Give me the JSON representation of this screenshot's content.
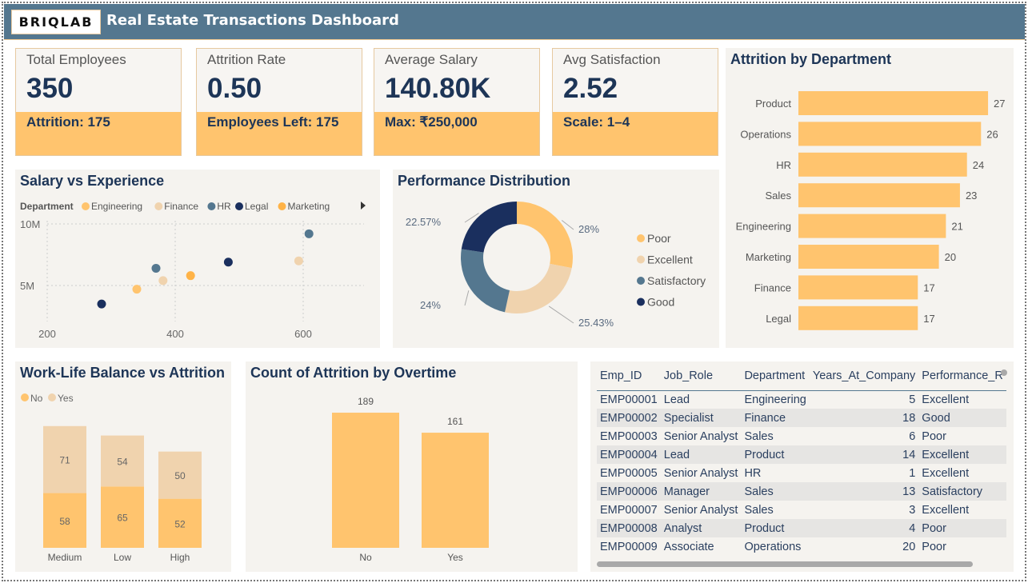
{
  "header": {
    "logo": "BRIQLAB",
    "title": "Real Estate Transactions Dashboard"
  },
  "kpis": [
    {
      "label": "Total Employees",
      "value": "350",
      "sub": "Attrition: 175"
    },
    {
      "label": "Attrition Rate",
      "value": "0.50",
      "sub": "Employees Left: 175"
    },
    {
      "label": "Average Salary",
      "value": "140.80K",
      "sub": "Max: ₹250,000"
    },
    {
      "label": "Avg Satisfaction",
      "value": "2.52",
      "sub": "Scale: 1–4"
    }
  ],
  "colors": {
    "header": "#54778f",
    "accent": "#ffc46e",
    "navy": "#1a2f5e",
    "steel": "#54778f",
    "beige": "#f0d3ae"
  },
  "chart_data": [
    {
      "type": "bar",
      "orientation": "horizontal",
      "title": "Attrition by Department",
      "categories": [
        "Product",
        "Operations",
        "HR",
        "Sales",
        "Engineering",
        "Marketing",
        "Finance",
        "Legal"
      ],
      "values": [
        27,
        26,
        24,
        23,
        21,
        20,
        17,
        17
      ]
    },
    {
      "type": "scatter",
      "title": "Salary vs Experience",
      "legend_title": "Department",
      "legend": [
        "Engineering",
        "Finance",
        "HR",
        "Legal",
        "Marketing"
      ],
      "legend_colors": [
        "#ffc46e",
        "#f0d3ae",
        "#54778f",
        "#1a2f5e",
        "#ffb347"
      ],
      "x_ticks": [
        "200",
        "400",
        "600"
      ],
      "y_ticks": [
        "10M",
        "5M"
      ],
      "xlim": [
        200,
        700
      ],
      "ylim": [
        2000000,
        10000000
      ],
      "grid": true,
      "points": [
        {
          "dept": "Legal",
          "x": 285,
          "y": 3500000
        },
        {
          "dept": "Engineering",
          "x": 340,
          "y": 4700000
        },
        {
          "dept": "HR",
          "x": 370,
          "y": 6400000
        },
        {
          "dept": "Finance",
          "x": 381,
          "y": 5400000
        },
        {
          "dept": "Marketing",
          "x": 424,
          "y": 5800000
        },
        {
          "dept": "Legal",
          "x": 483,
          "y": 6900000
        },
        {
          "dept": "Finance",
          "x": 593,
          "y": 7000000
        },
        {
          "dept": "HR",
          "x": 609,
          "y": 9200000
        }
      ]
    },
    {
      "type": "pie",
      "donut": true,
      "title": "Performance Distribution",
      "labels": [
        "Poor",
        "Excellent",
        "Satisfactory",
        "Good"
      ],
      "values": [
        28,
        25.43,
        24,
        22.57
      ],
      "data_labels": [
        "28%",
        "25.43%",
        "24%",
        "22.57%"
      ],
      "colors": [
        "#ffc46e",
        "#f0d3ae",
        "#54778f",
        "#1a2f5e"
      ],
      "legend": "right"
    },
    {
      "type": "bar",
      "stacked": true,
      "title": "Work-Life Balance vs Attrition",
      "categories": [
        "Medium",
        "Low",
        "High"
      ],
      "series": [
        {
          "name": "No",
          "values": [
            58,
            65,
            52
          ],
          "color": "#ffc46e"
        },
        {
          "name": "Yes",
          "values": [
            71,
            54,
            50
          ],
          "color": "#f0d3ae"
        }
      ],
      "legend": "top-left"
    },
    {
      "type": "bar",
      "title": "Count of Attrition by Overtime",
      "categories": [
        "No",
        "Yes"
      ],
      "values": [
        189,
        161
      ]
    }
  ],
  "table": {
    "columns": [
      "Emp_ID",
      "Job_Role",
      "Department",
      "Years_At_Company",
      "Performance_R"
    ],
    "rows": [
      [
        "EMP00001",
        "Lead",
        "Engineering",
        "5",
        "Excellent"
      ],
      [
        "EMP00002",
        "Specialist",
        "Finance",
        "18",
        "Good"
      ],
      [
        "EMP00003",
        "Senior Analyst",
        "Sales",
        "6",
        "Poor"
      ],
      [
        "EMP00004",
        "Lead",
        "Product",
        "14",
        "Excellent"
      ],
      [
        "EMP00005",
        "Senior Analyst",
        "HR",
        "1",
        "Excellent"
      ],
      [
        "EMP00006",
        "Manager",
        "Sales",
        "13",
        "Satisfactory"
      ],
      [
        "EMP00007",
        "Senior Analyst",
        "Sales",
        "3",
        "Excellent"
      ],
      [
        "EMP00008",
        "Analyst",
        "Product",
        "4",
        "Poor"
      ],
      [
        "EMP00009",
        "Associate",
        "Operations",
        "20",
        "Poor"
      ]
    ]
  }
}
